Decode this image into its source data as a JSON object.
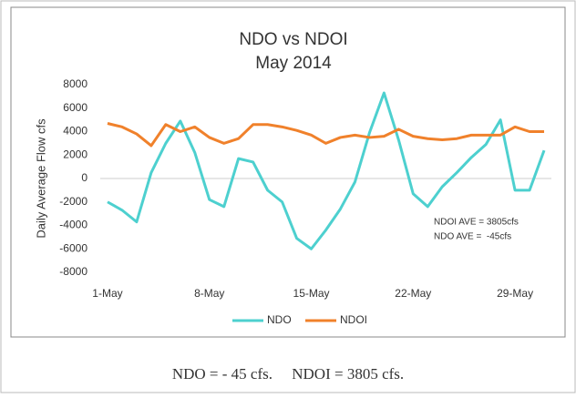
{
  "chart_data": {
    "type": "line",
    "title": "NDO vs NDOI",
    "subtitle": "May 2014",
    "y_label": "Daily Average Flow cfs",
    "categories": [
      "1-May",
      null,
      null,
      null,
      null,
      null,
      null,
      "8-May",
      null,
      null,
      null,
      null,
      null,
      null,
      "15-May",
      null,
      null,
      null,
      null,
      null,
      null,
      "22-May",
      null,
      null,
      null,
      null,
      null,
      null,
      "29-May",
      null,
      null
    ],
    "series": [
      {
        "name": "NDO",
        "color": "#4dd0cf",
        "values": [
          -2000,
          -2700,
          -3700,
          500,
          3000,
          4900,
          2200,
          -1800,
          -2400,
          1700,
          1400,
          -1000,
          -2000,
          -5100,
          -6000,
          -4400,
          -2600,
          -300,
          3900,
          7300,
          3300,
          -1300,
          -2400,
          -700,
          500,
          1800,
          2900,
          5000,
          -1000,
          -1000,
          2400
        ]
      },
      {
        "name": "NDOI",
        "color": "#f0812b",
        "values": [
          4700,
          4400,
          3800,
          2800,
          4600,
          4000,
          4400,
          3500,
          3000,
          3400,
          4600,
          4600,
          4400,
          4100,
          3700,
          3000,
          3500,
          3700,
          3500,
          3600,
          4200,
          3600,
          3400,
          3300,
          3400,
          3700,
          3700,
          3700,
          4400,
          4000,
          4000
        ]
      }
    ],
    "ylim": [
      -8000,
      8000
    ],
    "yticks": [
      -8000,
      -6000,
      -4000,
      -2000,
      0,
      2000,
      4000,
      6000,
      8000
    ],
    "grid": false,
    "legend": "bottom",
    "annotations": [
      "NDOI AVE = 3805cfs",
      "NDO AVE =  -45cfs"
    ]
  },
  "caption": "NDO = - 45 cfs.     NDOI = 3805 cfs."
}
